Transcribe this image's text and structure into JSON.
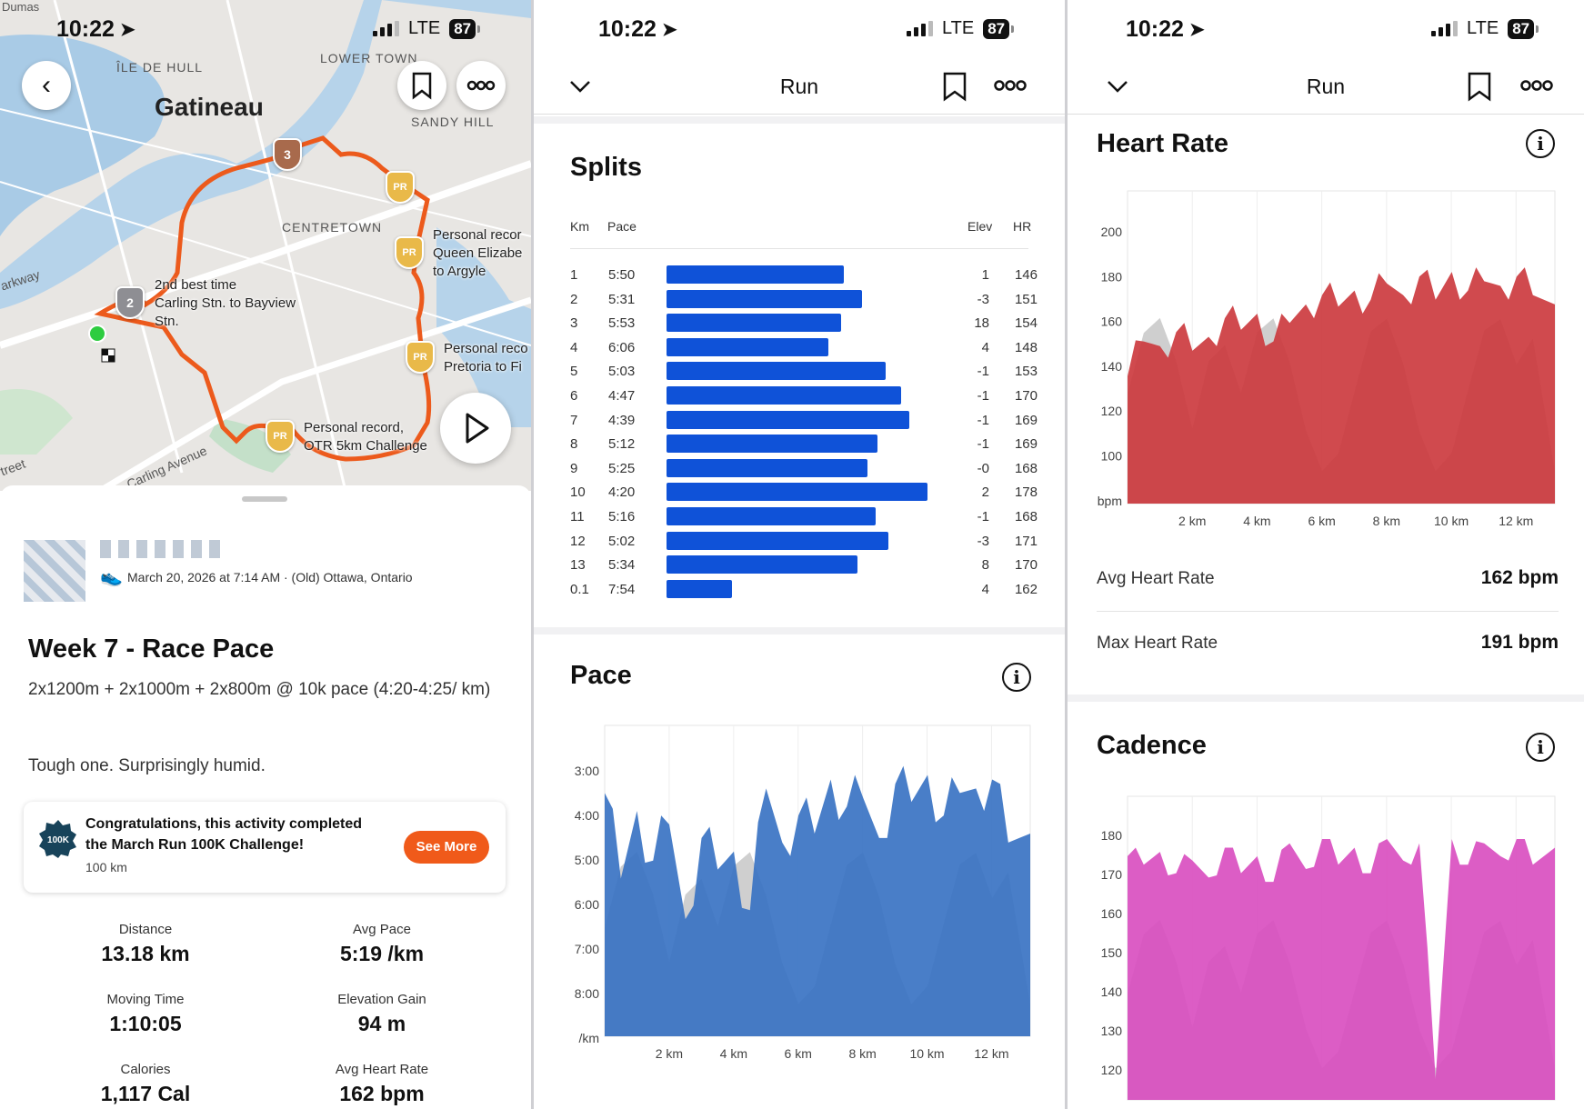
{
  "status_bar": {
    "time": "10:22",
    "network": "LTE",
    "battery": "87"
  },
  "map": {
    "labels": {
      "dumas": "Dumas",
      "ile_de_hull": "ÎLE DE HULL",
      "lower_town": "LOWER TOWN",
      "gatineau": "Gatineau",
      "sandy_hill": "SANDY HILL",
      "centretown": "CENTRETOWN",
      "parkway": "arkway",
      "carling_ave": "Carling Avenue",
      "street": "treet"
    },
    "segments": [
      {
        "badge": "3",
        "lines": []
      },
      {
        "badge": "PR",
        "lines": []
      },
      {
        "badge": "PR",
        "lines": [
          "Personal recor",
          "Queen Elizabe",
          "to Argyle"
        ]
      },
      {
        "badge": "2",
        "lines": [
          "2nd best time",
          "Carling Stn. to Bayview",
          "Stn."
        ]
      },
      {
        "badge": "PR",
        "lines": [
          "Personal reco",
          "Pretoria to Fi"
        ]
      },
      {
        "badge": "PR",
        "lines": [
          "Personal record,",
          "OTR 5km Challenge"
        ]
      }
    ],
    "badge_colors": {
      "gold": "#e9b949",
      "bronze": "#a86a4c",
      "silver": "#8e8e93"
    },
    "route_color": "#ec5a1c"
  },
  "activity": {
    "meta": "March 20, 2026 at 7:14 AM · (Old) Ottawa, Ontario",
    "title": "Week 7 - Race Pace",
    "description": "2x1200m + 2x1000m + 2x800m @ 10k pace (4:20-4:25/ km)",
    "note": "Tough one. Surprisingly humid.",
    "challenge": {
      "line1": "Congratulations, this activity completed",
      "line2": "the March Run 100K Challenge!",
      "sub": "100 km",
      "button": "See More",
      "badge": "100K"
    },
    "stats": [
      {
        "label": "Distance",
        "value": "13.18 km"
      },
      {
        "label": "Avg Pace",
        "value": "5:19 /km"
      },
      {
        "label": "Moving Time",
        "value": "1:10:05"
      },
      {
        "label": "Elevation Gain",
        "value": "94 m"
      },
      {
        "label": "Calories",
        "value": "1,117 Cal"
      },
      {
        "label": "Avg Heart Rate",
        "value": "162 bpm"
      }
    ]
  },
  "run_nav": {
    "title": "Run"
  },
  "splits": {
    "title": "Splits",
    "headers": {
      "km": "Km",
      "pace": "Pace",
      "elev": "Elev",
      "hr": "HR"
    },
    "rows": [
      {
        "km": "1",
        "pace": "5:50",
        "elev": "1",
        "hr": "146",
        "speed": 0.68
      },
      {
        "km": "2",
        "pace": "5:31",
        "elev": "-3",
        "hr": "151",
        "speed": 0.75
      },
      {
        "km": "3",
        "pace": "5:53",
        "elev": "18",
        "hr": "154",
        "speed": 0.67
      },
      {
        "km": "4",
        "pace": "6:06",
        "elev": "4",
        "hr": "148",
        "speed": 0.62
      },
      {
        "km": "5",
        "pace": "5:03",
        "elev": "-1",
        "hr": "153",
        "speed": 0.84
      },
      {
        "km": "6",
        "pace": "4:47",
        "elev": "-1",
        "hr": "170",
        "speed": 0.9
      },
      {
        "km": "7",
        "pace": "4:39",
        "elev": "-1",
        "hr": "169",
        "speed": 0.93
      },
      {
        "km": "8",
        "pace": "5:12",
        "elev": "-1",
        "hr": "169",
        "speed": 0.81
      },
      {
        "km": "9",
        "pace": "5:25",
        "elev": "-0",
        "hr": "168",
        "speed": 0.77
      },
      {
        "km": "10",
        "pace": "4:20",
        "elev": "2",
        "hr": "178",
        "speed": 1.0
      },
      {
        "km": "11",
        "pace": "5:16",
        "elev": "-1",
        "hr": "168",
        "speed": 0.8
      },
      {
        "km": "12",
        "pace": "5:02",
        "elev": "-3",
        "hr": "171",
        "speed": 0.85
      },
      {
        "km": "13",
        "pace": "5:34",
        "elev": "8",
        "hr": "170",
        "speed": 0.73
      },
      {
        "km": "0.1",
        "pace": "7:54",
        "elev": "4",
        "hr": "162",
        "speed": 0.25
      }
    ],
    "bar_color": "#0f52d8"
  },
  "pace": {
    "title": "Pace"
  },
  "heart": {
    "title": "Heart Rate",
    "avg_label": "Avg Heart Rate",
    "avg_value": "162 bpm",
    "max_label": "Max Heart Rate",
    "max_value": "191 bpm"
  },
  "cadence": {
    "title": "Cadence"
  },
  "chart_data": [
    {
      "type": "area",
      "title": "Pace",
      "xlabel": "",
      "ylabel": "/km",
      "x_ticks": [
        "2 km",
        "4 km",
        "6 km",
        "8 km",
        "10 km",
        "12 km"
      ],
      "y_ticks": [
        "3:00",
        "4:00",
        "5:00",
        "6:00",
        "7:00",
        "8:00",
        "/km"
      ],
      "x": [
        0,
        0.5,
        1,
        1.5,
        2,
        2.5,
        3,
        3.5,
        4,
        4.5,
        5,
        5.5,
        6,
        6.5,
        7,
        7.5,
        8,
        8.5,
        9,
        9.5,
        10,
        10.5,
        11,
        11.5,
        12,
        12.5,
        13.18
      ],
      "series": [
        {
          "values": [
            4.1,
            6.0,
            4.5,
            5.6,
            4.8,
            6.9,
            5.1,
            5.8,
            5.4,
            6.7,
            4.0,
            5.2,
            4.6,
            5.0,
            3.8,
            4.4,
            4.2,
            5.1,
            3.9,
            4.3,
            3.7,
            4.6,
            4.1,
            4.0,
            3.8,
            5.2,
            5.0
          ]
        }
      ],
      "ylim_min_per_km": [
        2.6,
        9.5
      ],
      "colors": {
        "fill": "#3a73c3",
        "elevation": "#cfcfcf"
      }
    },
    {
      "type": "area",
      "title": "Heart Rate",
      "xlabel": "",
      "ylabel": "bpm",
      "x_ticks": [
        "2 km",
        "4 km",
        "6 km",
        "8 km",
        "10 km",
        "12 km"
      ],
      "y_ticks": [
        "200",
        "180",
        "160",
        "140",
        "120",
        "100",
        "bpm"
      ],
      "x": [
        0,
        0.5,
        1,
        1.5,
        2,
        2.5,
        3,
        3.5,
        4,
        4.5,
        5,
        5.5,
        6,
        6.5,
        7,
        7.5,
        8,
        8.5,
        9,
        9.5,
        10,
        10.5,
        11,
        11.5,
        12,
        12.5,
        13.18
      ],
      "series": [
        {
          "values": [
            135,
            150,
            148,
            154,
            146,
            152,
            160,
            155,
            162,
            150,
            158,
            166,
            170,
            165,
            172,
            168,
            175,
            170,
            178,
            168,
            180,
            172,
            176,
            174,
            178,
            170,
            166
          ]
        }
      ],
      "ylim": [
        80,
        215
      ],
      "colors": {
        "fill": "#cc3b3f",
        "elevation": "#cfcfcf"
      }
    },
    {
      "type": "area",
      "title": "Cadence",
      "xlabel": "",
      "ylabel": "",
      "x_ticks": [],
      "y_ticks": [
        "180",
        "170",
        "160",
        "150",
        "140",
        "130",
        "120"
      ],
      "x": [
        0,
        0.5,
        1,
        1.5,
        2,
        2.5,
        3,
        3.5,
        4,
        4.5,
        5,
        5.5,
        6,
        6.5,
        7,
        7.5,
        8,
        8.5,
        9,
        9.5,
        10,
        10.5,
        11,
        11.5,
        12,
        12.5,
        13.18
      ],
      "series": [
        {
          "values": [
            172,
            170,
            173,
            168,
            171,
            167,
            174,
            168,
            172,
            166,
            175,
            169,
            176,
            170,
            174,
            168,
            176,
            171,
            175,
            120,
            176,
            170,
            175,
            172,
            176,
            170,
            174
          ]
        }
      ],
      "ylim": [
        115,
        186
      ],
      "colors": {
        "fill": "#d94fc0",
        "elevation": "#cfcfcf"
      }
    }
  ]
}
